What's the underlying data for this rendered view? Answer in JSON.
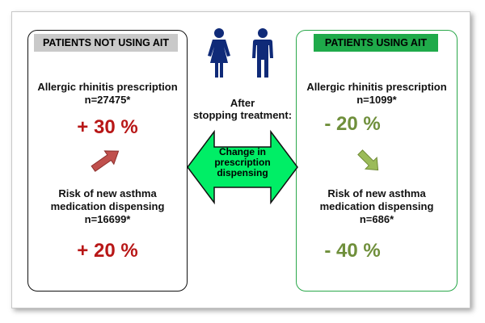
{
  "left": {
    "tag": "PATIENTS NOT USING AIT",
    "rhinitis_title": "Allergic rhinitis prescription",
    "rhinitis_n": "n=27475*",
    "rhinitis_change": "+ 30 %",
    "asthma_line1": "Risk of new asthma",
    "asthma_line2": "medication dispensing",
    "asthma_n": "n=16699*",
    "asthma_change": "+ 20 %"
  },
  "right": {
    "tag": "PATIENTS USING AIT",
    "rhinitis_title": "Allergic rhinitis prescription",
    "rhinitis_n": "n=1099*",
    "rhinitis_change": "- 20 %",
    "asthma_line1": "Risk of new asthma",
    "asthma_line2": "medication dispensing",
    "asthma_n": "n=686*",
    "asthma_change": "- 40 %"
  },
  "center": {
    "after_line1": "After",
    "after_line2": "stopping treatment:",
    "arrow_line1": "Change in",
    "arrow_line2": "prescription",
    "arrow_line3": "dispensing"
  },
  "colors": {
    "increase": "#b81717",
    "decrease": "#6f8f3b",
    "ait_border": "#2aa84a",
    "arrow_fill": "#00ee66",
    "person_fill": "#0f2a78"
  }
}
